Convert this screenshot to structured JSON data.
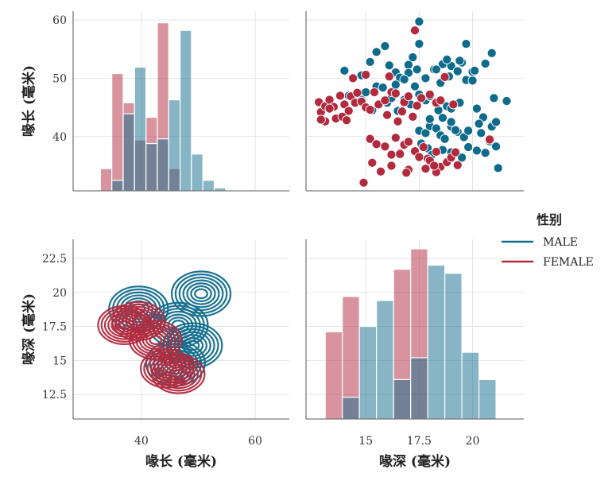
{
  "colors": {
    "male": "#0f6b8c",
    "female": "#b22a3e",
    "grid": "#dddddd",
    "spine": "#555555"
  },
  "legend": {
    "title": "性别",
    "entries": [
      {
        "label": "MALE",
        "color": "#0f6b8c"
      },
      {
        "label": "FEMALE",
        "color": "#b22a3e"
      }
    ]
  },
  "chart_data": [
    {
      "id": "hist-bill-length",
      "type": "histogram",
      "position": "top-left",
      "xlim": [
        28,
        66
      ],
      "ylim": [
        30.7,
        61.5
      ],
      "yticks": [
        40,
        50,
        60
      ],
      "ylabel": "喙长 (毫米)",
      "bin_edges": [
        32.8,
        34.8,
        36.8,
        38.8,
        40.8,
        42.8,
        44.8,
        46.8,
        48.8,
        50.8,
        52.8,
        54.8,
        56.8,
        58.8
      ],
      "series": [
        {
          "name": "FEMALE",
          "values": [
            34.5,
            50.8,
            45.8,
            39.4,
            43.3,
            59.5,
            34.5,
            31.0,
            31.0,
            31.0,
            31.0,
            31.0,
            31.0
          ]
        },
        {
          "name": "MALE",
          "values": [
            31.0,
            32.5,
            43.9,
            51.9,
            38.8,
            39.6,
            46.3,
            58.2,
            37.0,
            32.5,
            31.2,
            31.0,
            31.0
          ]
        }
      ]
    },
    {
      "id": "scatter-depth-length",
      "type": "scatter",
      "position": "top-right",
      "xlim": [
        12.2,
        22.4
      ],
      "ylim": [
        30.7,
        61.5
      ],
      "xticks": [
        15,
        17.5,
        20
      ],
      "series": [
        {
          "name": "MALE",
          "points": [
            [
              14.0,
              51.3
            ],
            [
              14.8,
              50.5
            ],
            [
              15.2,
              52.8
            ],
            [
              15.5,
              54.5
            ],
            [
              15.9,
              55.5
            ],
            [
              16.1,
              52.2
            ],
            [
              16.4,
              51.0
            ],
            [
              16.6,
              50.1
            ],
            [
              17.0,
              52.3
            ],
            [
              17.2,
              53.6
            ],
            [
              17.5,
              59.7
            ],
            [
              17.5,
              55.9
            ],
            [
              17.8,
              50.0
            ],
            [
              18.2,
              51.5
            ],
            [
              18.6,
              52.4
            ],
            [
              19.0,
              52.1
            ],
            [
              19.3,
              51.2
            ],
            [
              19.5,
              52.7
            ],
            [
              19.7,
              49.7
            ],
            [
              20.0,
              49.6
            ],
            [
              20.0,
              51.1
            ],
            [
              20.1,
              51.3
            ],
            [
              19.7,
              55.9
            ],
            [
              20.9,
              54.3
            ],
            [
              14.2,
              47.0
            ],
            [
              14.8,
              46.3
            ],
            [
              15.0,
              47.6
            ],
            [
              15.5,
              48.6
            ],
            [
              16.0,
              45.8
            ],
            [
              16.2,
              46.6
            ],
            [
              16.4,
              48.9
            ],
            [
              16.8,
              46.3
            ],
            [
              17.1,
              45.5
            ],
            [
              17.5,
              47.2
            ],
            [
              17.8,
              46.2
            ],
            [
              18.0,
              46.9
            ],
            [
              18.4,
              44.5
            ],
            [
              18.8,
              45.2
            ],
            [
              19.0,
              44.8
            ],
            [
              19.4,
              45.8
            ],
            [
              20.2,
              44.8
            ],
            [
              20.5,
              43.3
            ],
            [
              21.0,
              46.6
            ],
            [
              21.6,
              46.1
            ],
            [
              17.5,
              41.0
            ],
            [
              17.8,
              40.6
            ],
            [
              18.0,
              41.8
            ],
            [
              18.3,
              41.4
            ],
            [
              18.5,
              40.2
            ],
            [
              18.7,
              39.6
            ],
            [
              19.0,
              41.7
            ],
            [
              19.3,
              40.8
            ],
            [
              19.6,
              39.9
            ],
            [
              20.3,
              42.2
            ],
            [
              20.8,
              39.2
            ],
            [
              21.1,
              38.3
            ],
            [
              21.2,
              34.6
            ],
            [
              17.6,
              38.8
            ],
            [
              17.9,
              38.0
            ],
            [
              18.1,
              36.9
            ],
            [
              18.6,
              37.7
            ],
            [
              19.0,
              37.3
            ],
            [
              19.5,
              36.4
            ],
            [
              19.8,
              38.2
            ],
            [
              20.2,
              37.6
            ],
            [
              20.6,
              37.2
            ],
            [
              18.0,
              43.0
            ],
            [
              18.6,
              43.2
            ],
            [
              19.0,
              42.5
            ],
            [
              19.2,
              41.1
            ],
            [
              19.8,
              41.0
            ],
            [
              20.4,
              40.6
            ],
            [
              20.9,
              41.7
            ],
            [
              21.1,
              42.5
            ],
            [
              15.3,
              44.5
            ],
            [
              16.5,
              44.4
            ],
            [
              17.0,
              50.9
            ],
            [
              18.3,
              51.5
            ],
            [
              18.8,
              53.2
            ],
            [
              18.5,
              49.2
            ],
            [
              15.8,
              48.4
            ],
            [
              16.8,
              49.8
            ],
            [
              17.3,
              48.6
            ],
            [
              18.9,
              50.3
            ],
            [
              17.4,
              51.5
            ],
            [
              19.4,
              53.0
            ],
            [
              20.6,
              52.5
            ]
          ]
        },
        {
          "name": "FEMALE",
          "points": [
            [
              12.8,
              45.9
            ],
            [
              12.9,
              44.2
            ],
            [
              13.1,
              45.2
            ],
            [
              13.1,
              42.6
            ],
            [
              13.3,
              46.3
            ],
            [
              13.5,
              45.1
            ],
            [
              13.6,
              43.1
            ],
            [
              13.8,
              47.0
            ],
            [
              14.0,
              45.5
            ],
            [
              14.2,
              44.4
            ],
            [
              14.3,
              46.9
            ],
            [
              14.5,
              45.8
            ],
            [
              14.6,
              47.5
            ],
            [
              14.8,
              46.0
            ],
            [
              15.0,
              45.0
            ],
            [
              15.2,
              44.6
            ],
            [
              15.4,
              47.6
            ],
            [
              15.6,
              45.5
            ],
            [
              15.9,
              46.2
            ],
            [
              16.0,
              43.7
            ],
            [
              16.2,
              47.6
            ],
            [
              16.4,
              47.4
            ],
            [
              16.5,
              42.6
            ],
            [
              16.7,
              44.3
            ],
            [
              16.8,
              45.9
            ],
            [
              17.0,
              46.9
            ],
            [
              17.2,
              43.4
            ],
            [
              17.4,
              45.3
            ],
            [
              17.6,
              46.6
            ],
            [
              18.0,
              47.2
            ],
            [
              18.3,
              45.8
            ],
            [
              18.5,
              46.2
            ],
            [
              19.1,
              45.5
            ],
            [
              13.3,
              44.8
            ],
            [
              13.9,
              43.4
            ],
            [
              14.1,
              42.8
            ],
            [
              12.9,
              42.9
            ],
            [
              15.0,
              50.6
            ],
            [
              16.1,
              50.3
            ],
            [
              18.7,
              50.2
            ],
            [
              17.3,
              58.2
            ],
            [
              14.4,
              50.0
            ],
            [
              15.2,
              39.6
            ],
            [
              15.5,
              38.7
            ],
            [
              15.9,
              38.3
            ],
            [
              16.2,
              36.9
            ],
            [
              16.4,
              39.8
            ],
            [
              16.6,
              37.2
            ],
            [
              16.8,
              38.6
            ],
            [
              17.0,
              39.1
            ],
            [
              17.3,
              37.5
            ],
            [
              17.5,
              36.5
            ],
            [
              17.7,
              38.2
            ],
            [
              17.9,
              36.2
            ],
            [
              18.0,
              35.9
            ],
            [
              18.3,
              37.4
            ],
            [
              18.5,
              34.8
            ],
            [
              18.8,
              35.6
            ],
            [
              19.0,
              36.4
            ],
            [
              19.2,
              37.3
            ],
            [
              15.7,
              34.0
            ],
            [
              15.3,
              35.5
            ],
            [
              16.2,
              35.0
            ],
            [
              16.6,
              37.0
            ],
            [
              17.8,
              34.5
            ],
            [
              18.3,
              33.9
            ],
            [
              19.3,
              35.1
            ],
            [
              17.0,
              34.3
            ],
            [
              14.9,
              32.1
            ],
            [
              16.9,
              33.8
            ],
            [
              20.8,
              39.5
            ],
            [
              18.2,
              35.0
            ]
          ]
        }
      ]
    },
    {
      "id": "kde-length-depth",
      "type": "kde",
      "position": "bottom-left",
      "xlim": [
        28,
        66
      ],
      "ylim": [
        10.7,
        23.9
      ],
      "xticks": [
        40,
        60
      ],
      "yticks": [
        12.5,
        15,
        17.5,
        20,
        22.5
      ],
      "xlabel": "喙长 (毫米)",
      "ylabel": "喙深 (毫米)",
      "series": [
        {
          "name": "MALE",
          "centers": [
            [
              39.5,
              18.8
            ],
            [
              46.5,
              17.6
            ],
            [
              50.5,
              19.9
            ],
            [
              46.0,
              14.8
            ],
            [
              49.0,
              16.1
            ]
          ]
        },
        {
          "name": "FEMALE",
          "centers": [
            [
              37.0,
              17.6
            ],
            [
              39.5,
              17.9
            ],
            [
              44.5,
              14.4
            ],
            [
              46.5,
              14.0
            ],
            [
              42.5,
              16.5
            ]
          ]
        }
      ]
    },
    {
      "id": "hist-bill-depth",
      "type": "histogram",
      "position": "bottom-right",
      "xlim": [
        12.2,
        22.4
      ],
      "ylim": [
        10.7,
        23.9
      ],
      "xticks": [
        15,
        17.5,
        20
      ],
      "xlabel": "喙深 (毫米)",
      "bin_edges": [
        13.1,
        13.9,
        14.7,
        15.5,
        16.3,
        17.1,
        17.9,
        18.7,
        19.5,
        20.3,
        21.1,
        21.9
      ],
      "series": [
        {
          "name": "FEMALE",
          "values": [
            17.1,
            19.7,
            11.0,
            11.0,
            21.7,
            23.2,
            11.0,
            11.0,
            11.0,
            11.0,
            11.0
          ]
        },
        {
          "name": "MALE",
          "values": [
            11.0,
            12.3,
            17.5,
            19.4,
            13.6,
            15.2,
            22.0,
            21.4,
            15.6,
            13.6,
            11.0
          ]
        }
      ]
    }
  ]
}
